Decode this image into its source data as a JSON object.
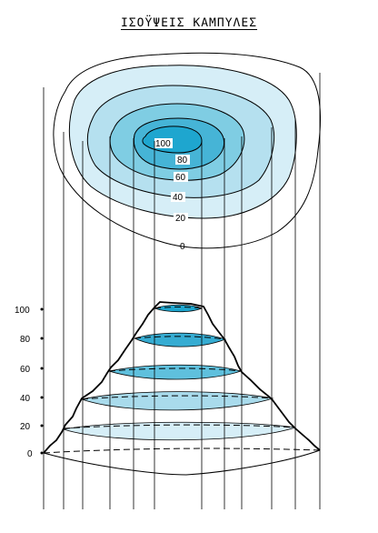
{
  "title": "ΙΣΟΫΨΕΙΣ ΚΑΜΠΥΛΕΣ",
  "contour_labels": [
    "100",
    "80",
    "60",
    "40",
    "20",
    "0"
  ],
  "axis_ticks": [
    "100",
    "80",
    "60",
    "40",
    "20",
    "0"
  ],
  "colors": {
    "level_20": "#d6eef7",
    "level_40": "#b5e0ef",
    "level_60": "#7fcde3",
    "level_80": "#46b4d6",
    "level_100": "#1ea6cf",
    "outline": "#000000",
    "background": "#ffffff"
  }
}
